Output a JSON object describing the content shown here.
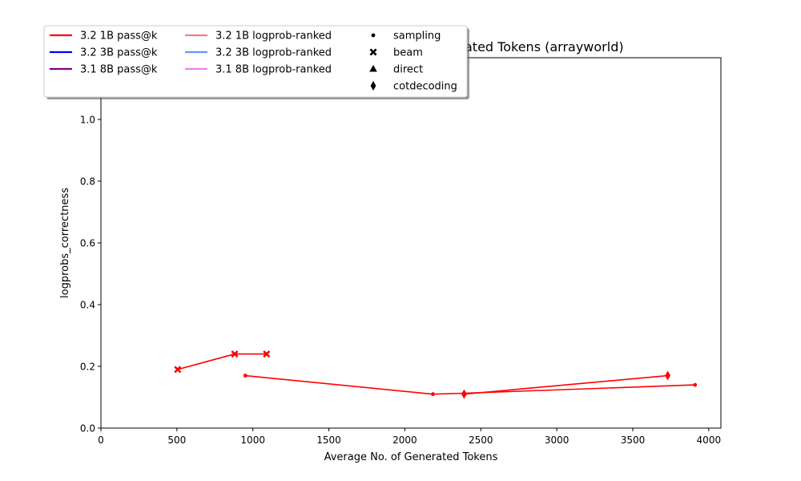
{
  "chart_data": {
    "type": "line",
    "title": "ated Tokens (arrayworld)",
    "xlabel": "Average No. of Generated Tokens",
    "ylabel": "logprobs_correctness",
    "xlim": [
      0,
      4080
    ],
    "ylim": [
      0,
      1.2
    ],
    "xticks": [
      0,
      500,
      1000,
      1500,
      2000,
      2500,
      3000,
      3500,
      4000
    ],
    "yticks": [
      0.0,
      0.2,
      0.4,
      0.6,
      0.8,
      1.0
    ],
    "grid": false,
    "legend_position": "top-left",
    "legend": {
      "models": [
        {
          "label": "3.2 1B pass@k",
          "color": "#ff0000"
        },
        {
          "label": "3.2 3B pass@k",
          "color": "#0000ff"
        },
        {
          "label": "3.1 8B pass@k",
          "color": "#800080"
        },
        {
          "label": "3.2 1B logprob-ranked",
          "color": "#f08080"
        },
        {
          "label": "3.2 3B logprob-ranked",
          "color": "#6495ed"
        },
        {
          "label": "3.1 8B logprob-ranked",
          "color": "#ee82ee"
        }
      ],
      "methods": [
        {
          "label": "sampling",
          "marker": "point"
        },
        {
          "label": "beam",
          "marker": "x"
        },
        {
          "label": "direct",
          "marker": "triangle"
        },
        {
          "label": "cotdecoding",
          "marker": "thin_diamond"
        }
      ]
    },
    "series": [
      {
        "name": "3.2 1B pass@k",
        "method": "beam",
        "color": "#ff0000",
        "marker": "x",
        "points": [
          [
            505,
            0.19
          ],
          [
            880,
            0.24
          ],
          [
            1090,
            0.24
          ]
        ]
      },
      {
        "name": "3.2 1B pass@k",
        "method": "sampling",
        "color": "#ff0000",
        "marker": "point",
        "points": [
          [
            950,
            0.17
          ],
          [
            2185,
            0.11
          ],
          [
            2390,
            0.113
          ],
          [
            3910,
            0.14
          ]
        ]
      },
      {
        "name": "3.2 1B pass@k",
        "method": "cotdecoding",
        "color": "#ff0000",
        "marker": "thin_diamond",
        "points": [
          [
            2390,
            0.11
          ],
          [
            3730,
            0.17
          ]
        ]
      }
    ]
  }
}
